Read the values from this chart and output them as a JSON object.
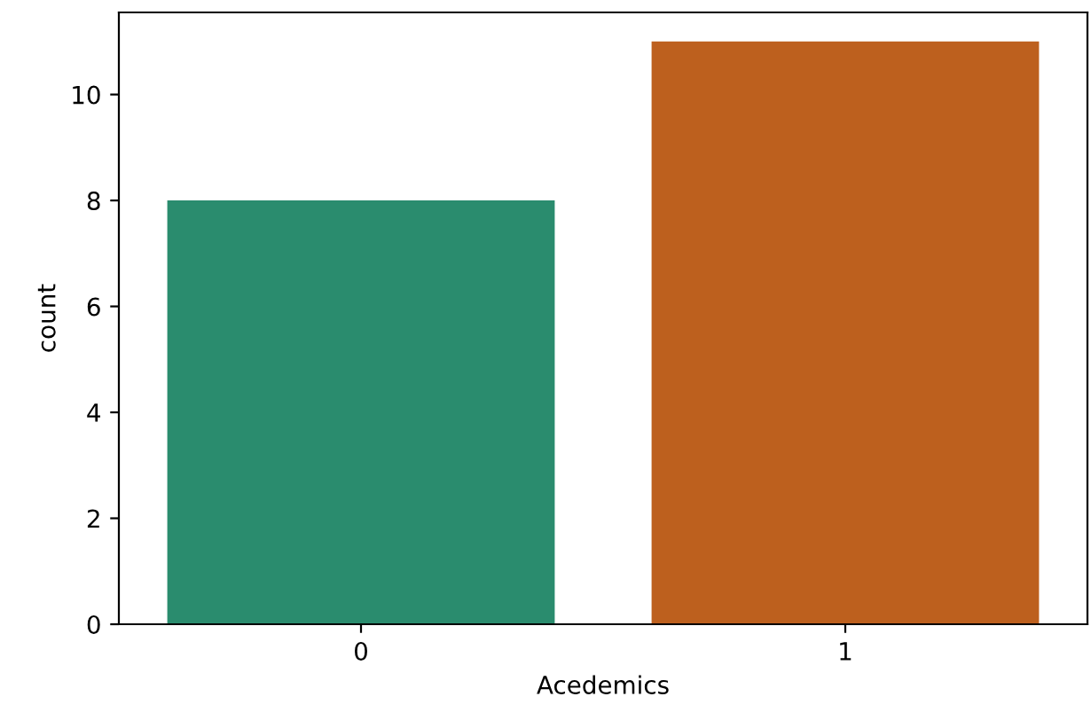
{
  "chart_data": {
    "type": "bar",
    "xlabel": "Acedemics",
    "ylabel": "count",
    "categories": [
      "0",
      "1"
    ],
    "values": [
      8,
      11
    ],
    "colors": [
      "#2a8c6e",
      "#bd601e"
    ],
    "ylim": [
      0,
      11.55
    ],
    "yticks": [
      0,
      2,
      4,
      6,
      8,
      10
    ],
    "grid": false
  }
}
